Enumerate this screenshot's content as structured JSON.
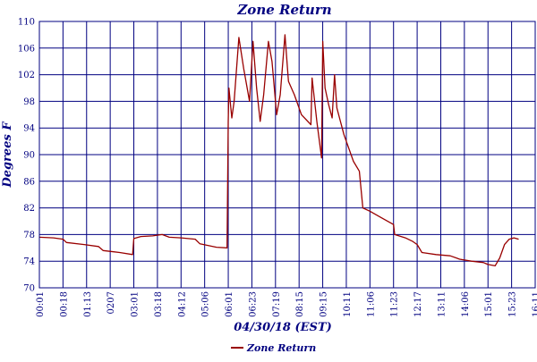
{
  "chart_data": {
    "type": "line",
    "title": "Zone Return",
    "xlabel": "04/30/18 (EST)",
    "ylabel": "Degrees F",
    "ylim": [
      70,
      110
    ],
    "y_ticks": [
      "70",
      "74",
      "78",
      "82",
      "86",
      "90",
      "94",
      "98",
      "102",
      "106",
      "110"
    ],
    "x_ticks": [
      "00:01",
      "00:18",
      "01:13",
      "0207",
      "03:01",
      "03:18",
      "04:12",
      "05:06",
      "06:01",
      "06:23",
      "07:19",
      "08:15",
      "09:15",
      "10:11",
      "11:06",
      "11:23",
      "12:17",
      "13:11",
      "14:06",
      "15:01",
      "15:23",
      "16:11"
    ],
    "grid": true,
    "legend_position": "bottom-center",
    "colors": {
      "series": "#990000",
      "grid": "#000080",
      "text": "#000080"
    },
    "series": [
      {
        "name": "Zone Return",
        "points": [
          [
            0.0,
            77.6
          ],
          [
            0.6,
            77.5
          ],
          [
            1.0,
            77.3
          ],
          [
            1.15,
            76.8
          ],
          [
            1.9,
            76.5
          ],
          [
            2.5,
            76.2
          ],
          [
            2.7,
            75.6
          ],
          [
            3.4,
            75.3
          ],
          [
            3.95,
            75.0
          ],
          [
            4.0,
            77.4
          ],
          [
            4.3,
            77.7
          ],
          [
            4.8,
            77.8
          ],
          [
            5.2,
            78.0
          ],
          [
            5.5,
            77.6
          ],
          [
            6.0,
            77.5
          ],
          [
            6.6,
            77.3
          ],
          [
            6.8,
            76.6
          ],
          [
            7.5,
            76.1
          ],
          [
            7.95,
            76.0
          ],
          [
            8.0,
            95.0
          ],
          [
            8.03,
            100.0
          ],
          [
            8.15,
            95.5
          ],
          [
            8.25,
            98.0
          ],
          [
            8.45,
            107.6
          ],
          [
            8.65,
            103.0
          ],
          [
            8.9,
            98.0
          ],
          [
            9.05,
            107.0
          ],
          [
            9.2,
            100.0
          ],
          [
            9.35,
            95.0
          ],
          [
            9.5,
            99.0
          ],
          [
            9.7,
            107.0
          ],
          [
            9.85,
            104.0
          ],
          [
            10.05,
            96.0
          ],
          [
            10.2,
            99.0
          ],
          [
            10.4,
            108.0
          ],
          [
            10.55,
            101.0
          ],
          [
            10.8,
            99.0
          ],
          [
            11.1,
            96.0
          ],
          [
            11.5,
            94.5
          ],
          [
            11.55,
            101.5
          ],
          [
            11.75,
            95.0
          ],
          [
            11.95,
            89.5
          ],
          [
            12.0,
            107.0
          ],
          [
            12.1,
            100.0
          ],
          [
            12.25,
            97.5
          ],
          [
            12.4,
            95.5
          ],
          [
            12.5,
            102.0
          ],
          [
            12.6,
            97.0
          ],
          [
            12.9,
            93.0
          ],
          [
            13.3,
            89.0
          ],
          [
            13.55,
            87.5
          ],
          [
            13.7,
            82.0
          ],
          [
            14.0,
            81.5
          ],
          [
            14.5,
            80.5
          ],
          [
            15.0,
            79.5
          ],
          [
            15.05,
            78.0
          ],
          [
            15.5,
            77.5
          ],
          [
            15.8,
            77.0
          ],
          [
            16.0,
            76.5
          ],
          [
            16.2,
            75.3
          ],
          [
            16.8,
            75.0
          ],
          [
            17.4,
            74.8
          ],
          [
            17.8,
            74.3
          ],
          [
            18.3,
            74.0
          ],
          [
            18.8,
            73.8
          ],
          [
            19.0,
            73.5
          ],
          [
            19.3,
            73.3
          ],
          [
            19.5,
            74.5
          ],
          [
            19.7,
            76.5
          ],
          [
            19.9,
            77.3
          ],
          [
            20.1,
            77.5
          ],
          [
            20.3,
            77.3
          ]
        ]
      }
    ]
  }
}
